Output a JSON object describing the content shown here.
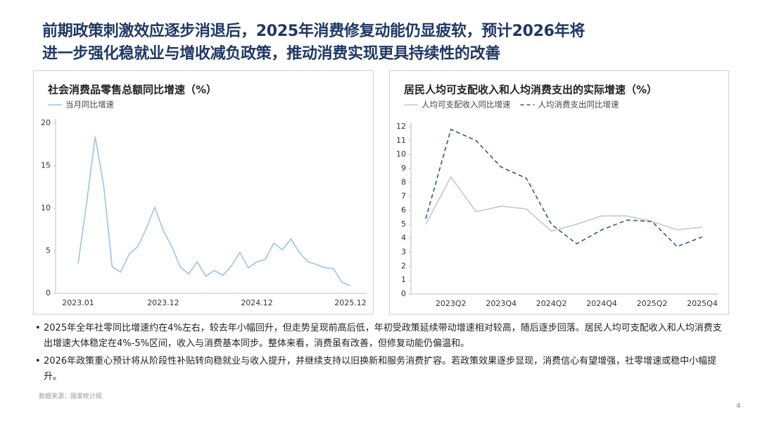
{
  "title": [
    "前期政策刺激效应逐步消退后，2025年消费修复动能仍显疲软，预计2026年将",
    "进一步强化稳就业与增收减负政策，推动消费实现更具持续性的改善"
  ],
  "chart_data": [
    {
      "type": "line",
      "title": "社会消费品零售总额同比增速（%）",
      "categories": [
        "2023.01",
        null,
        null,
        null,
        null,
        null,
        null,
        null,
        null,
        null,
        "2023.12",
        null,
        null,
        null,
        null,
        null,
        null,
        null,
        null,
        null,
        null,
        "2024.12",
        null,
        null,
        null,
        null,
        null,
        null,
        null,
        null,
        null,
        null,
        "2025.12"
      ],
      "series": [
        {
          "name": "当月同比增速",
          "color": "#9dc3e6",
          "dashed": false,
          "values": [
            3.5,
            10.6,
            18.4,
            12.7,
            3.1,
            2.5,
            4.6,
            5.5,
            7.6,
            10.1,
            7.4,
            5.5,
            3.1,
            2.3,
            3.7,
            2.0,
            2.7,
            2.1,
            3.2,
            4.8,
            3.0,
            3.7,
            4.0,
            5.9,
            5.1,
            6.4,
            4.8,
            3.7,
            3.4,
            3.0,
            2.9,
            1.3,
            0.9
          ]
        }
      ],
      "ylim": [
        0,
        20
      ],
      "yticks": [
        0,
        5,
        10,
        15,
        20
      ],
      "grid": false
    },
    {
      "type": "line",
      "title": "居民人均可支配收入和人均消费支出的实际增速（%）",
      "categories": [
        null,
        "2023Q2",
        null,
        "2023Q4",
        null,
        "2024Q2",
        null,
        "2024Q4",
        null,
        "2025Q2",
        null,
        "2025Q4"
      ],
      "series": [
        {
          "name": "人均可支配收入同比增速",
          "color": "#c8c8c8",
          "dashed": false,
          "values": [
            5.0,
            8.4,
            5.9,
            6.3,
            6.1,
            4.5,
            5.0,
            5.6,
            5.6,
            5.2,
            4.6,
            4.8
          ]
        },
        {
          "name": "人均消费支出同比增速",
          "color": "#2e5b8a",
          "dashed": true,
          "values": [
            5.4,
            11.8,
            11.0,
            9.1,
            8.3,
            5.0,
            3.6,
            4.6,
            5.3,
            5.2,
            3.4,
            4.1
          ]
        }
      ],
      "ylim": [
        0,
        12
      ],
      "yticks": [
        0,
        1,
        2,
        3,
        4,
        5,
        6,
        7,
        8,
        9,
        10,
        11,
        12
      ],
      "grid": false
    }
  ],
  "bullets": [
    "2025年全年社零同比增速约在4%左右，较去年小幅回升，但走势呈现前高后低，年初受政策延续带动增速相对较高，随后逐步回落。居民人均可支配收入和人均消费支出增速大体稳定在4%-5%区间，收入与消费基本同步。整体来看，消费虽有改善，但修复动能仍偏温和。",
    "2026年政策重心预计将从阶段性补贴转向稳就业与收入提升，并继续支持以旧换新和服务消费扩容。若政策效果逐步显现，消费信心有望增强，社零增速或稳中小幅提升。"
  ],
  "source": "数据来源：国家统计局",
  "page_number": "4"
}
